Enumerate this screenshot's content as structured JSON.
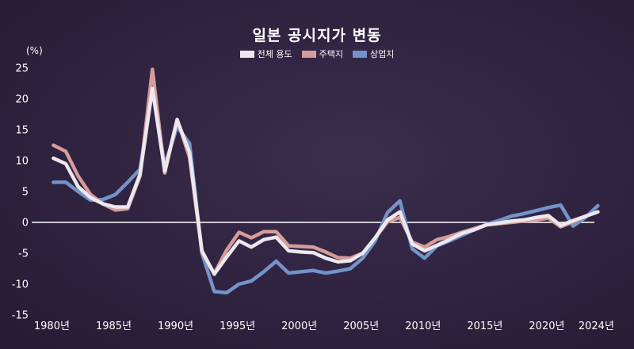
{
  "chart_data": {
    "type": "line",
    "title": "일본 공시지가 변동",
    "ylabel": "(%)",
    "xlabel": "",
    "ylim": [
      -15,
      25
    ],
    "xlim": [
      1978.5,
      2025
    ],
    "grid": false,
    "legend_position": "top-center",
    "y_ticks": [
      25,
      20,
      15,
      10,
      5,
      0,
      -5,
      -10,
      -15
    ],
    "x_tick_labels": [
      {
        "x": 1980,
        "label": "1980년"
      },
      {
        "x": 1985,
        "label": "1985년"
      },
      {
        "x": 1990,
        "label": "1990년"
      },
      {
        "x": 1995,
        "label": "1995년"
      },
      {
        "x": 2000,
        "label": "2000년"
      },
      {
        "x": 2005,
        "label": "2005년"
      },
      {
        "x": 2010,
        "label": "2010년"
      },
      {
        "x": 2015,
        "label": "2015년"
      },
      {
        "x": 2020,
        "label": "2020년"
      },
      {
        "x": 2024,
        "label": "2024년"
      }
    ],
    "x": [
      1980,
      1981,
      1982,
      1983,
      1984,
      1985,
      1986,
      1987,
      1988,
      1989,
      1990,
      1991,
      1992,
      1993,
      1994,
      1995,
      1996,
      1997,
      1998,
      1999,
      2000,
      2001,
      2002,
      2003,
      2004,
      2005,
      2006,
      2007,
      2008,
      2009,
      2010,
      2011,
      2012,
      2013,
      2014,
      2015,
      2016,
      2017,
      2018,
      2019,
      2020,
      2021,
      2022,
      2023,
      2024
    ],
    "series": [
      {
        "name": "전체 용도",
        "color": "#ece8ee",
        "values": [
          10.4,
          9.5,
          5.8,
          4.0,
          3.0,
          2.5,
          2.5,
          7.8,
          21.7,
          8.3,
          16.6,
          11.3,
          -4.6,
          -8.4,
          -5.6,
          -3.0,
          -4.0,
          -2.8,
          -2.4,
          -4.6,
          -4.8,
          -4.9,
          -5.8,
          -6.4,
          -6.2,
          -5.0,
          -2.5,
          0.4,
          1.7,
          -3.5,
          -4.6,
          -3.7,
          -2.8,
          -1.8,
          -1.2,
          -0.4,
          -0.1,
          0.2,
          0.4,
          0.8,
          1.1,
          -0.5,
          0.3,
          1.0,
          1.7
        ]
      },
      {
        "name": "주택지",
        "color": "#d69b9b",
        "values": [
          12.5,
          11.5,
          7.5,
          4.5,
          3.0,
          2.0,
          2.2,
          7.5,
          24.8,
          8.0,
          16.7,
          10.5,
          -4.8,
          -8.3,
          -4.5,
          -1.6,
          -2.5,
          -1.5,
          -1.5,
          -3.8,
          -3.9,
          -4.0,
          -4.8,
          -5.7,
          -5.8,
          -5.0,
          -2.5,
          0.1,
          0.8,
          -3.2,
          -4.0,
          -2.8,
          -2.3,
          -1.6,
          -1.0,
          -0.4,
          -0.2,
          0.0,
          0.2,
          0.4,
          0.7,
          -0.7,
          0.1,
          1.0,
          1.7
        ]
      },
      {
        "name": "상업지",
        "color": "#7393c9",
        "values": [
          6.5,
          6.5,
          5.0,
          3.6,
          3.7,
          4.5,
          6.5,
          8.6,
          21.5,
          9.2,
          15.5,
          12.8,
          -5.0,
          -11.2,
          -11.4,
          -10.0,
          -9.5,
          -8.0,
          -6.3,
          -8.2,
          -8.0,
          -7.8,
          -8.2,
          -7.9,
          -7.5,
          -5.8,
          -3.0,
          1.6,
          3.5,
          -4.3,
          -5.8,
          -3.8,
          -3.0,
          -2.1,
          -1.2,
          -0.3,
          0.3,
          1.0,
          1.4,
          1.9,
          2.4,
          2.8,
          -0.6,
          0.8,
          2.7
        ]
      }
    ]
  }
}
